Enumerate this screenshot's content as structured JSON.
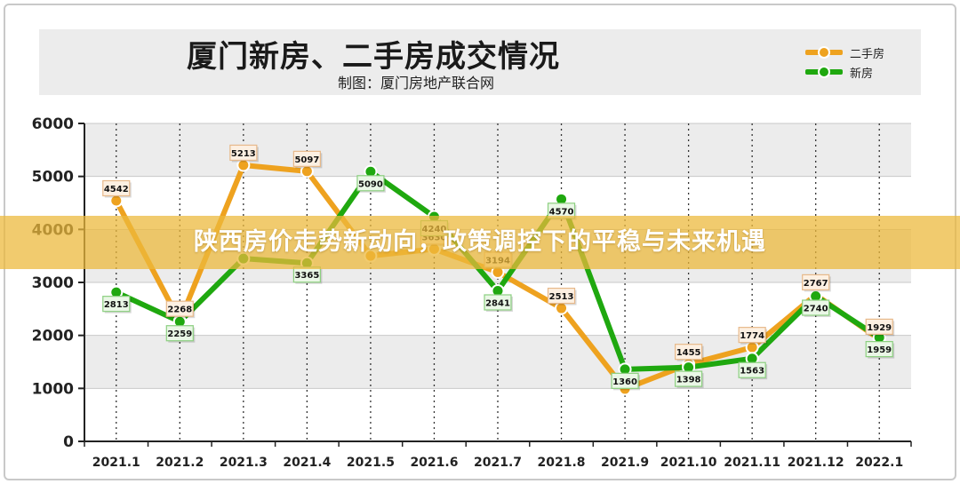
{
  "header": {
    "title": "厦门新房、二手房成交情况",
    "subtitle": "制图：厦门房地产联合网"
  },
  "banner": {
    "text": "陕西房价走势新动向，政策调控下的平稳与未来机遇"
  },
  "colors": {
    "second_hand": "#eea21f",
    "new_house": "#1fa80f",
    "grid": "#c9c9c9",
    "axis": "#222222",
    "plot_band": "#ececec"
  },
  "chart_data": {
    "type": "line",
    "title": "厦门新房、二手房成交情况",
    "categories": [
      "2021.1",
      "2021.2",
      "2021.3",
      "2021.4",
      "2021.5",
      "2021.6",
      "2021.7",
      "2021.8",
      "2021.9",
      "2021.10",
      "2021.11",
      "2021.12",
      "2022.1"
    ],
    "series": [
      {
        "name": "二手房",
        "color": "#eea21f",
        "values": [
          4542,
          2268,
          5213,
          5097,
          3500,
          3630,
          3194,
          2513,
          990,
          1455,
          1774,
          2767,
          1929
        ],
        "labels": [
          "4542",
          "2268",
          "5213",
          "5097",
          "",
          "3630",
          "3194",
          "2513",
          "",
          "1455",
          "1774",
          "2767",
          "1929"
        ]
      },
      {
        "name": "新房",
        "color": "#1fa80f",
        "values": [
          2813,
          2259,
          3450,
          3365,
          5090,
          4240,
          2841,
          4570,
          1360,
          1398,
          1563,
          2740,
          1959
        ],
        "labels": [
          "2813",
          "2259",
          "",
          "3365",
          "5090",
          "4240",
          "2841",
          "4570",
          "1360",
          "1398",
          "1563",
          "2740",
          "1959"
        ]
      }
    ],
    "ylim": [
      0,
      6000
    ],
    "yticks": [
      "0",
      "1000",
      "2000",
      "3000",
      "4000",
      "5000",
      "6000"
    ],
    "grid": true,
    "legend": "top-right"
  }
}
